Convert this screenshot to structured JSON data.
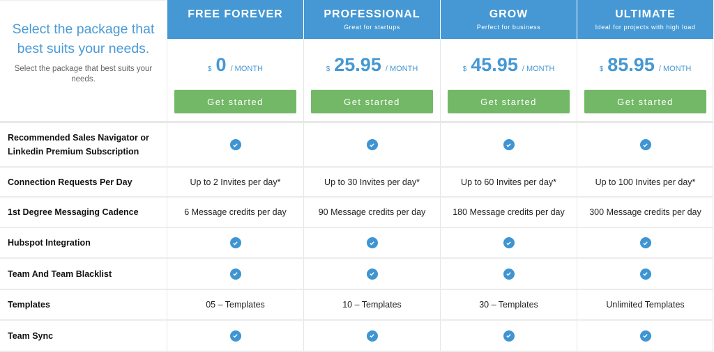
{
  "intro": {
    "title": "Select the package that best suits your needs.",
    "subtitle": "Select the package that best suits your needs."
  },
  "plans": [
    {
      "name": "FREE FOREVER",
      "tagline": "",
      "currency": "$",
      "price": "0",
      "period": "/ MONTH",
      "cta": "Get started"
    },
    {
      "name": "PROFESSIONAL",
      "tagline": "Great for startups",
      "currency": "$",
      "price": "25.95",
      "period": "/ MONTH",
      "cta": "Get started"
    },
    {
      "name": "GROW",
      "tagline": "Perfect for business",
      "currency": "$",
      "price": "45.95",
      "period": "/ MONTH",
      "cta": "Get started"
    },
    {
      "name": "ULTIMATE",
      "tagline": "Ideal for projects with high load",
      "currency": "$",
      "price": "85.95",
      "period": "/ MONTH",
      "cta": "Get started"
    }
  ],
  "features": [
    {
      "label": "Recommended Sales Navigator or Linkedin Premium Subscription",
      "values": [
        "check",
        "check",
        "check",
        "check"
      ]
    },
    {
      "label": "Connection Requests Per Day",
      "values": [
        "Up to 2 Invites per day*",
        "Up to 30 Invites per day*",
        "Up to 60 Invites per day*",
        "Up to 100 Invites per day*"
      ]
    },
    {
      "label": "1st Degree Messaging Cadence",
      "values": [
        "6 Message credits per day",
        "90 Message credits per day",
        "180 Message credits per day",
        "300 Message credits per day"
      ]
    },
    {
      "label": "Hubspot Integration",
      "values": [
        "check",
        "check",
        "check",
        "check"
      ]
    },
    {
      "label": "Team And Team Blacklist",
      "values": [
        "check",
        "check",
        "check",
        "check"
      ]
    },
    {
      "label": "Templates",
      "values": [
        "05 – Templates",
        "10 – Templates",
        "30 – Templates",
        "Unlimited Templates"
      ]
    },
    {
      "label": "Team Sync",
      "values": [
        "check",
        "check",
        "check",
        "check"
      ]
    }
  ],
  "colors": {
    "header": "#4598d3",
    "button": "#72b866",
    "check": "#3f94d2",
    "title": "#4a9ad6"
  }
}
